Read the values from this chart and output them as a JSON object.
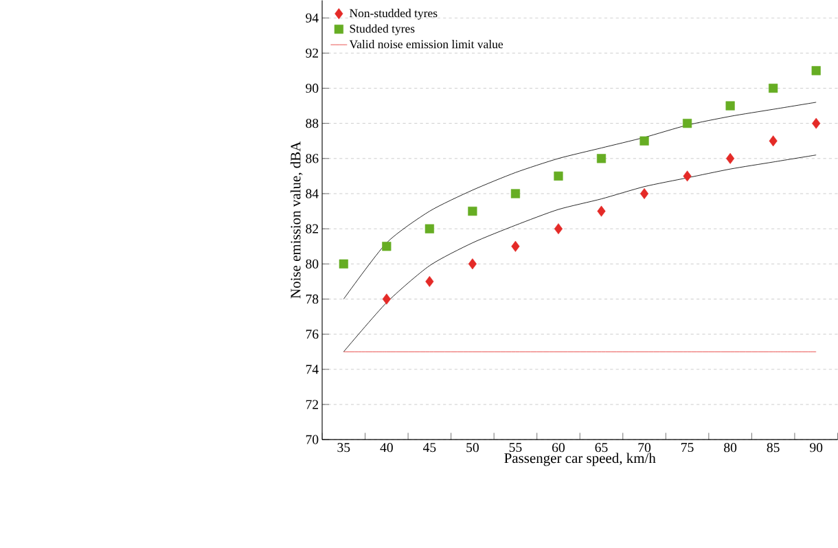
{
  "chart_data": {
    "type": "scatter",
    "xlabel": "Passenger car speed, km/h",
    "ylabel": "Noise emission value, dBA",
    "categories": [
      "35",
      "40",
      "45",
      "50",
      "55",
      "60",
      "65",
      "70",
      "75",
      "80",
      "85",
      "90"
    ],
    "ylim": [
      70,
      95
    ],
    "yticks": [
      70,
      72,
      74,
      76,
      78,
      80,
      82,
      84,
      86,
      88,
      90,
      92,
      94
    ],
    "grid": "y",
    "legend": "top left",
    "series": [
      {
        "name": "Non-studded tyres",
        "color": "#e42a27",
        "marker": "diamond",
        "values": [
          null,
          78,
          79,
          80,
          81,
          82,
          83,
          84,
          85,
          86,
          87,
          88
        ]
      },
      {
        "name": "Studded tyres",
        "color": "#66ad23",
        "marker": "square",
        "values": [
          80,
          81,
          82,
          83,
          84,
          85,
          86,
          87,
          88,
          89,
          90,
          91
        ]
      },
      {
        "name": "Valid noise emission limit value",
        "type": "line",
        "color": "#e42a27",
        "marker": "none",
        "values": [
          75,
          75,
          75,
          75,
          75,
          75,
          75,
          75,
          75,
          75,
          75,
          75
        ]
      },
      {
        "type": "line",
        "color": "#000000",
        "marker": "none",
        "values": [
          78.0,
          81.2,
          83.0,
          84.2,
          85.2,
          86.0,
          86.6,
          87.2,
          87.9,
          88.4,
          88.8,
          89.2
        ]
      },
      {
        "type": "line",
        "color": "#000000",
        "marker": "none",
        "values": [
          75.0,
          77.8,
          79.9,
          81.2,
          82.2,
          83.1,
          83.7,
          84.4,
          84.9,
          85.4,
          85.8,
          86.2
        ]
      }
    ]
  }
}
